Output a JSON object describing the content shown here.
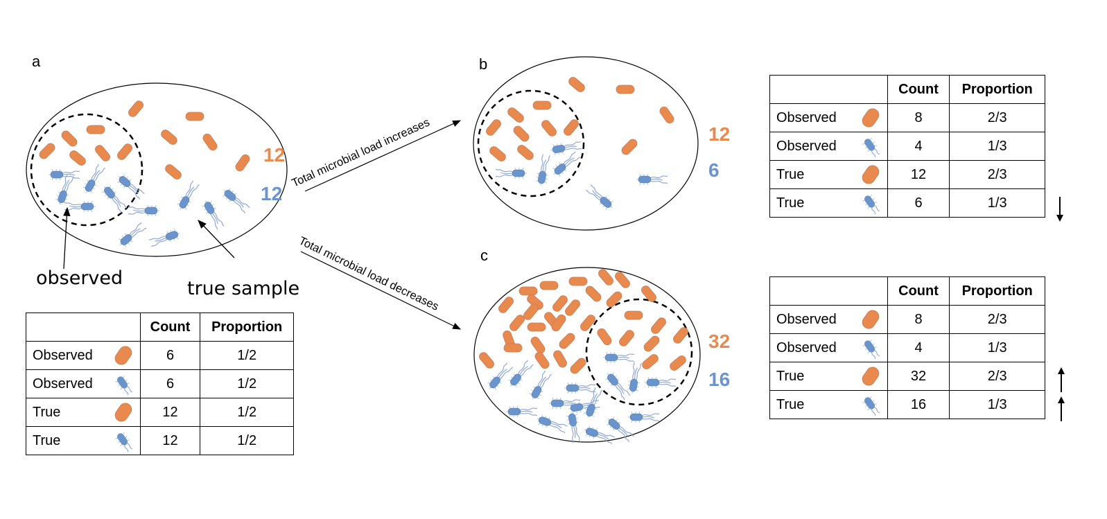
{
  "panels": {
    "a": {
      "letter": "a",
      "orange_count": "12",
      "blue_count": "12",
      "observed_label": "observed",
      "true_label": "true sample"
    },
    "b": {
      "letter": "b",
      "orange_count": "12",
      "blue_count": "6"
    },
    "c": {
      "letter": "c",
      "orange_count": "32",
      "blue_count": "16"
    }
  },
  "arrows": {
    "increase": "Total microbial load increases",
    "decrease": "Total microbial load decreases"
  },
  "tables": {
    "header": {
      "count": "Count",
      "proportion": "Proportion"
    },
    "a": [
      {
        "label": "Observed",
        "icon": "rod-bacterium-icon",
        "count": "6",
        "proportion": "1/2"
      },
      {
        "label": "Observed",
        "icon": "flagellated-bacterium-icon",
        "count": "6",
        "proportion": "1/2"
      },
      {
        "label": "True",
        "icon": "rod-bacterium-icon",
        "count": "12",
        "proportion": "1/2"
      },
      {
        "label": "True",
        "icon": "flagellated-bacterium-icon",
        "count": "12",
        "proportion": "1/2"
      }
    ],
    "b": [
      {
        "label": "Observed",
        "icon": "rod-bacterium-icon",
        "count": "8",
        "proportion": "2/3"
      },
      {
        "label": "Observed",
        "icon": "flagellated-bacterium-icon",
        "count": "4",
        "proportion": "1/3"
      },
      {
        "label": "True",
        "icon": "rod-bacterium-icon",
        "count": "12",
        "proportion": "2/3"
      },
      {
        "label": "True",
        "icon": "flagellated-bacterium-icon",
        "count": "6",
        "proportion": "1/3"
      }
    ],
    "c": [
      {
        "label": "Observed",
        "icon": "rod-bacterium-icon",
        "count": "8",
        "proportion": "2/3"
      },
      {
        "label": "Observed",
        "icon": "flagellated-bacterium-icon",
        "count": "4",
        "proportion": "1/3"
      },
      {
        "label": "True",
        "icon": "rod-bacterium-icon",
        "count": "32",
        "proportion": "2/3"
      },
      {
        "label": "True",
        "icon": "flagellated-bacterium-icon",
        "count": "16",
        "proportion": "1/3"
      }
    ]
  },
  "change_indicators": {
    "b": [
      {
        "row": 4,
        "direction": "down-arrow-icon"
      }
    ],
    "c": [
      {
        "row": 3,
        "direction": "up-arrow-icon"
      },
      {
        "row": 4,
        "direction": "up-arrow-icon"
      }
    ]
  },
  "colors": {
    "orange": "#E8894E",
    "blue": "#6A95CC",
    "ink": "#000000"
  }
}
